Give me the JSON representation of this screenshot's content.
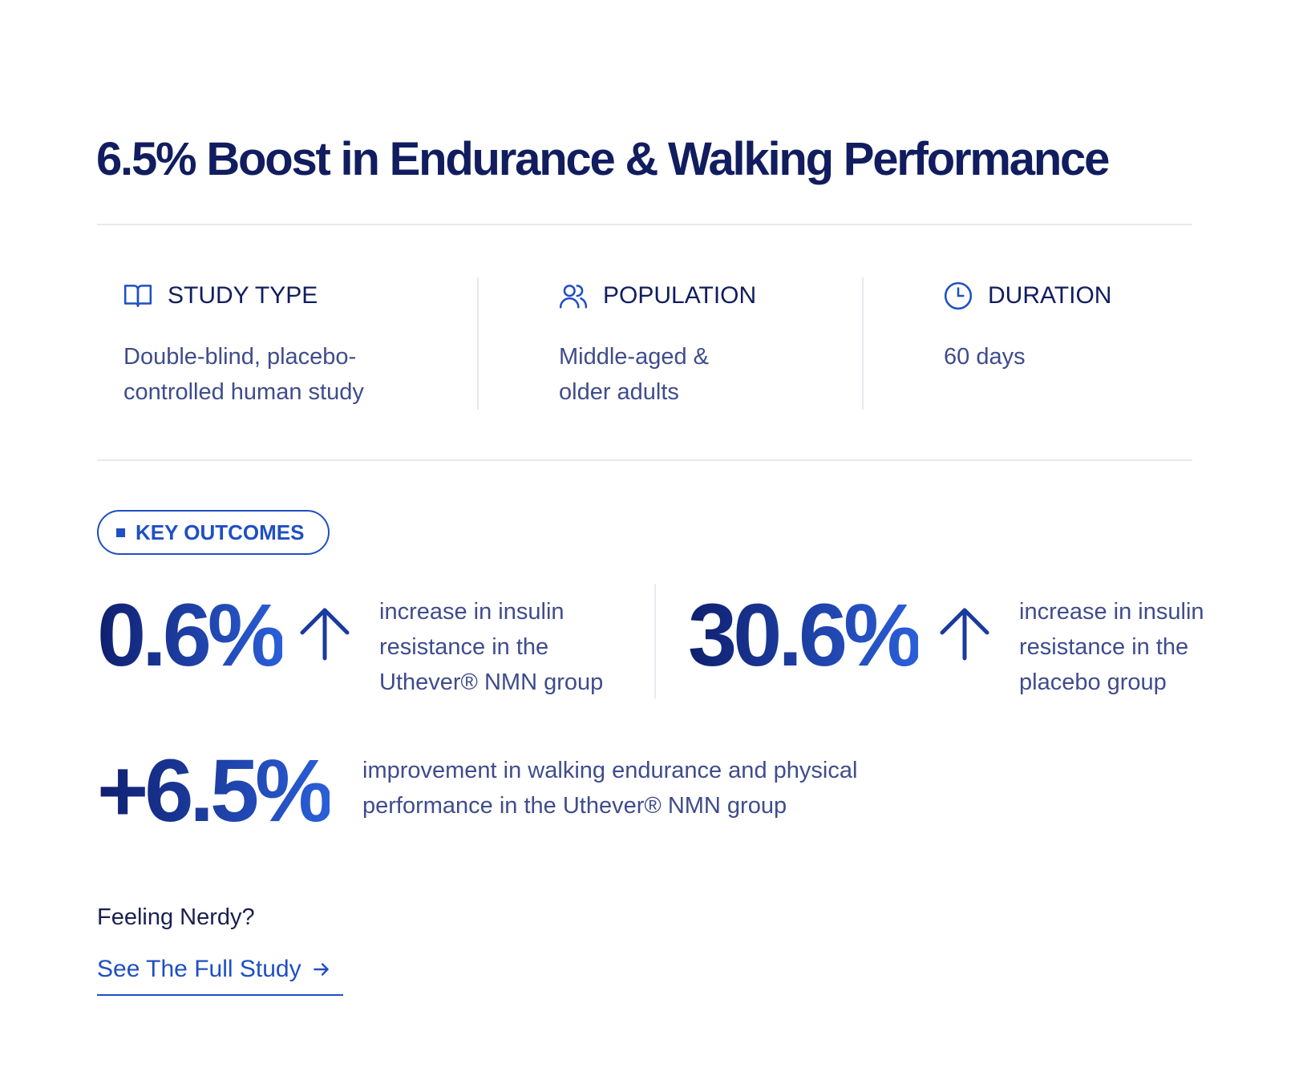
{
  "title": "6.5% Boost in Endurance & Walking Performance",
  "details": [
    {
      "icon": "book-icon",
      "label": "STUDY TYPE",
      "value_lines": [
        "Double-blind, placebo-",
        "controlled human study"
      ]
    },
    {
      "icon": "users-icon",
      "label": "POPULATION",
      "value_lines": [
        "Middle-aged &",
        "older adults"
      ]
    },
    {
      "icon": "clock-icon",
      "label": "DURATION",
      "value_lines": [
        "60 days"
      ]
    }
  ],
  "badge": "KEY OUTCOMES",
  "outcomes": [
    {
      "value": "0.6%",
      "icon": "arrow-up-icon",
      "lines": [
        "increase in insulin",
        "resistance in the",
        "Uthever® NMN group"
      ]
    },
    {
      "value": "30.6%",
      "icon": "arrow-up-icon",
      "lines": [
        "increase in insulin",
        "resistance in the",
        "placebo group"
      ]
    },
    {
      "value": "+6.5%",
      "lines": [
        "improvement in walking endurance and physical",
        "performance in the Uthever® NMN group"
      ]
    }
  ],
  "cta": {
    "prompt": "Feeling Nerdy?",
    "link_label": "See The Full Study",
    "icon": "arrow-right-icon"
  },
  "colors": {
    "navy": "#111d5f",
    "accent": "#1f4fc2",
    "body": "#3f4c8c"
  }
}
